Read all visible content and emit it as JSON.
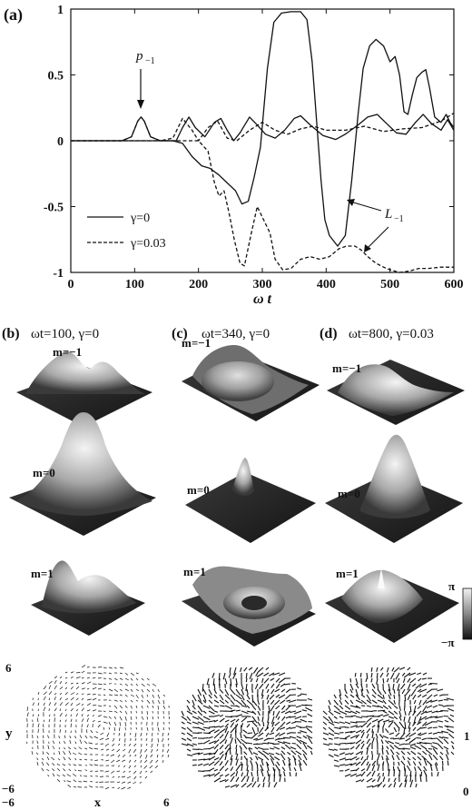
{
  "panel_a": {
    "label": "(a)",
    "p_label": "p",
    "p_sub": "−1",
    "L_label": "L",
    "L_sub": "−1"
  },
  "panels": {
    "b": {
      "label": "(b)",
      "title": "ωt=100, γ=0"
    },
    "c": {
      "label": "(c)",
      "title": "ωt=340, γ=0"
    },
    "d": {
      "label": "(d)",
      "title": "ωt=800, γ=0.03"
    }
  },
  "m_labels": [
    "m=−1",
    "m=0",
    "m=1"
  ],
  "colorbar": {
    "top": "π",
    "bottom": "−π"
  },
  "vector_field": {
    "y_label": "y",
    "x_label": "x",
    "y_top": "6",
    "y_bottom": "−6",
    "x_left": "−6",
    "x_right": "6",
    "right_top": "1",
    "right_bottom": "0"
  },
  "chart_data": {
    "type": "line",
    "xlabel": "ω t",
    "ylabel": "",
    "xlim": [
      0,
      600
    ],
    "ylim": [
      -1,
      1
    ],
    "xticks": [
      0,
      100,
      200,
      300,
      400,
      500,
      600
    ],
    "yticks": [
      -1,
      -0.5,
      0,
      0.5,
      1
    ],
    "xtick_labels": [
      "0",
      "100",
      "200",
      "300",
      "400",
      "500",
      "600"
    ],
    "ytick_labels": [
      "-1",
      "-0.5",
      "0",
      "0.5",
      "1"
    ],
    "legend": {
      "placement": "bottom-left",
      "entries": [
        {
          "label": "γ=0",
          "style": "solid"
        },
        {
          "label": "γ=0.03",
          "style": "dashed"
        }
      ]
    },
    "series": [
      {
        "name": "γ=0",
        "quantity": "p−1",
        "style": "solid",
        "points": [
          [
            0,
            0
          ],
          [
            80,
            0
          ],
          [
            95,
            0.03
          ],
          [
            105,
            0.15
          ],
          [
            110,
            0.18
          ],
          [
            115,
            0.15
          ],
          [
            125,
            0.03
          ],
          [
            140,
            0
          ],
          [
            165,
            0
          ],
          [
            175,
            0.1
          ],
          [
            185,
            0.18
          ],
          [
            195,
            0.1
          ],
          [
            210,
            0.03
          ],
          [
            225,
            0.14
          ],
          [
            235,
            0.17
          ],
          [
            245,
            0.08
          ],
          [
            255,
            0.0
          ],
          [
            265,
            0.06
          ],
          [
            280,
            0.18
          ],
          [
            290,
            0.13
          ],
          [
            305,
            0.05
          ],
          [
            320,
            0.02
          ],
          [
            335,
            0.08
          ],
          [
            350,
            0.17
          ],
          [
            360,
            0.19
          ],
          [
            375,
            0.12
          ],
          [
            395,
            0.04
          ],
          [
            415,
            0.01
          ],
          [
            430,
            0.05
          ],
          [
            450,
            0.12
          ],
          [
            465,
            0.18
          ],
          [
            480,
            0.2
          ],
          [
            495,
            0.13
          ],
          [
            510,
            0.06
          ],
          [
            525,
            0.05
          ],
          [
            540,
            0.14
          ],
          [
            552,
            0.2
          ],
          [
            565,
            0.13
          ],
          [
            580,
            0.08
          ],
          [
            590,
            0.16
          ],
          [
            600,
            0.08
          ]
        ]
      },
      {
        "name": "γ=0.03",
        "quantity": "p−1",
        "style": "dashed",
        "points": [
          [
            0,
            0
          ],
          [
            80,
            0
          ],
          [
            95,
            0.03
          ],
          [
            105,
            0.15
          ],
          [
            110,
            0.18
          ],
          [
            115,
            0.15
          ],
          [
            125,
            0.03
          ],
          [
            140,
            0
          ],
          [
            160,
            0.02
          ],
          [
            175,
            0.17
          ],
          [
            190,
            0.08
          ],
          [
            200,
            0.0
          ],
          [
            215,
            0.1
          ],
          [
            230,
            0.15
          ],
          [
            245,
            0.02
          ],
          [
            260,
            0.0
          ],
          [
            280,
            0.08
          ],
          [
            300,
            0.14
          ],
          [
            320,
            0.08
          ],
          [
            340,
            0.05
          ],
          [
            360,
            0.09
          ],
          [
            380,
            0.11
          ],
          [
            400,
            0.08
          ],
          [
            430,
            0.08
          ],
          [
            460,
            0.11
          ],
          [
            490,
            0.07
          ],
          [
            520,
            0.09
          ],
          [
            550,
            0.1
          ],
          [
            580,
            0.15
          ],
          [
            600,
            0.21
          ]
        ]
      },
      {
        "name": "γ=0",
        "quantity": "L−1",
        "style": "solid",
        "points": [
          [
            0,
            0
          ],
          [
            160,
            0
          ],
          [
            175,
            -0.02
          ],
          [
            190,
            -0.12
          ],
          [
            205,
            -0.19
          ],
          [
            218,
            -0.21
          ],
          [
            232,
            -0.26
          ],
          [
            245,
            -0.32
          ],
          [
            258,
            -0.38
          ],
          [
            268,
            -0.48
          ],
          [
            278,
            -0.46
          ],
          [
            287,
            -0.28
          ],
          [
            297,
            -0.05
          ],
          [
            308,
            0.55
          ],
          [
            318,
            0.9
          ],
          [
            330,
            0.97
          ],
          [
            345,
            0.98
          ],
          [
            360,
            0.98
          ],
          [
            370,
            0.92
          ],
          [
            378,
            0.6
          ],
          [
            385,
            0.15
          ],
          [
            392,
            -0.3
          ],
          [
            398,
            -0.6
          ],
          [
            405,
            -0.72
          ],
          [
            418,
            -0.8
          ],
          [
            430,
            -0.72
          ],
          [
            440,
            -0.3
          ],
          [
            450,
            0.2
          ],
          [
            458,
            0.55
          ],
          [
            468,
            0.72
          ],
          [
            478,
            0.77
          ],
          [
            490,
            0.72
          ],
          [
            500,
            0.6
          ],
          [
            508,
            0.64
          ],
          [
            515,
            0.5
          ],
          [
            522,
            0.22
          ],
          [
            528,
            0.2
          ],
          [
            535,
            0.35
          ],
          [
            542,
            0.48
          ],
          [
            550,
            0.52
          ],
          [
            556,
            0.54
          ],
          [
            562,
            0.4
          ],
          [
            570,
            0.18
          ],
          [
            580,
            0.14
          ],
          [
            588,
            0.2
          ],
          [
            594,
            0.14
          ],
          [
            600,
            0.1
          ]
        ]
      },
      {
        "name": "γ=0.03",
        "quantity": "L−1",
        "style": "dashed",
        "points": [
          [
            0,
            0
          ],
          [
            200,
            0
          ],
          [
            215,
            -0.08
          ],
          [
            225,
            -0.32
          ],
          [
            232,
            -0.42
          ],
          [
            240,
            -0.38
          ],
          [
            248,
            -0.55
          ],
          [
            256,
            -0.75
          ],
          [
            265,
            -0.93
          ],
          [
            272,
            -0.95
          ],
          [
            282,
            -0.72
          ],
          [
            292,
            -0.5
          ],
          [
            302,
            -0.6
          ],
          [
            312,
            -0.7
          ],
          [
            320,
            -0.9
          ],
          [
            332,
            -0.98
          ],
          [
            345,
            -0.97
          ],
          [
            360,
            -0.9
          ],
          [
            375,
            -0.88
          ],
          [
            390,
            -0.9
          ],
          [
            405,
            -0.88
          ],
          [
            420,
            -0.82
          ],
          [
            432,
            -0.8
          ],
          [
            445,
            -0.8
          ],
          [
            455,
            -0.83
          ],
          [
            465,
            -0.88
          ],
          [
            478,
            -0.93
          ],
          [
            490,
            -0.96
          ],
          [
            500,
            -0.98
          ],
          [
            515,
            -1.0
          ],
          [
            530,
            -0.99
          ],
          [
            545,
            -0.97
          ],
          [
            560,
            -0.97
          ],
          [
            580,
            -0.96
          ],
          [
            600,
            -0.96
          ]
        ]
      }
    ]
  }
}
